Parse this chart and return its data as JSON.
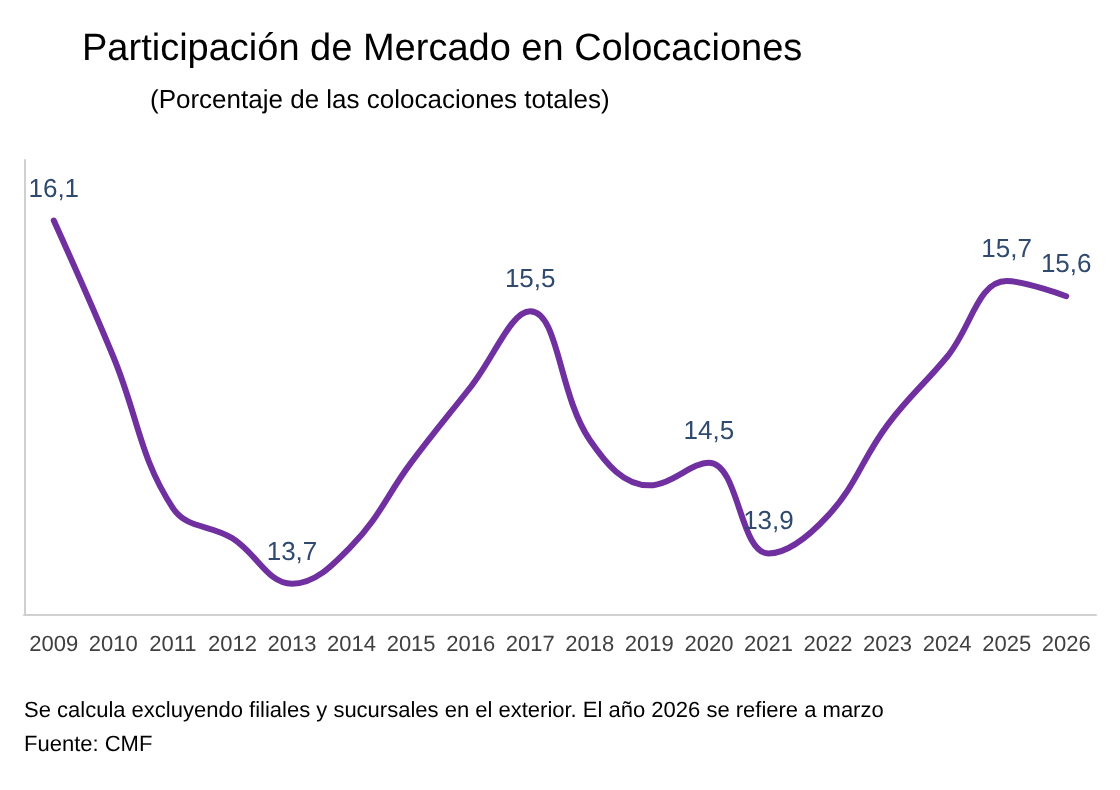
{
  "chart_data": {
    "type": "line",
    "title": "Participación de Mercado en Colocaciones",
    "subtitle": "(Porcentaje de las colocaciones totales)",
    "categories": [
      "2009",
      "2010",
      "2011",
      "2012",
      "2013",
      "2014",
      "2015",
      "2016",
      "2017",
      "2018",
      "2019",
      "2020",
      "2021",
      "2022",
      "2023",
      "2024",
      "2025",
      "2026"
    ],
    "series": [
      {
        "color": "#7030a0",
        "values": [
          16.1,
          15.2,
          14.2,
          14.0,
          13.7,
          13.95,
          14.5,
          15.0,
          15.5,
          14.65,
          14.35,
          14.5,
          13.9,
          14.15,
          14.75,
          15.2,
          15.7,
          15.6
        ],
        "value_labels": [
          "16,1",
          null,
          null,
          null,
          "13,7",
          null,
          null,
          null,
          "15,5",
          null,
          null,
          "14,5",
          "13,9",
          null,
          null,
          null,
          "15,7",
          "15,6"
        ]
      }
    ],
    "relative": false,
    "grid": false,
    "marker": "none",
    "line_style": "solid",
    "annotations": [
      "Se calcula excluyendo filiales y sucursales en el exterior. El año 2026 se refiere a marzo",
      "Fuente: CMF"
    ]
  }
}
